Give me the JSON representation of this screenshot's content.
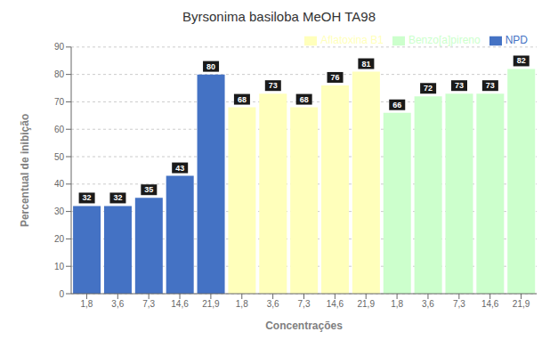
{
  "chart_data": {
    "type": "bar",
    "title": "Byrsonima basiloba  MeOH TA98",
    "xlabel": "Concentrações",
    "ylabel": "Percentual de inibição",
    "categories": [
      "1,8",
      "3,6",
      "7,3",
      "14,6",
      "21,9",
      "1,8",
      "3,6",
      "7,3",
      "14,6",
      "21,9",
      "1,8",
      "3,6",
      "7,3",
      "14,6",
      "21,9"
    ],
    "series": [
      {
        "name": "NPD",
        "color": "#4472C4",
        "values": [
          32,
          32,
          35,
          43,
          80,
          null,
          null,
          null,
          null,
          null,
          null,
          null,
          null,
          null,
          null
        ]
      },
      {
        "name": "Aflatoxina B1",
        "color": "#FFFFBB",
        "values": [
          null,
          null,
          null,
          null,
          null,
          68,
          73,
          68,
          76,
          81,
          null,
          null,
          null,
          null,
          null
        ]
      },
      {
        "name": "Benzo[a]pireno",
        "color": "#CCFFCC",
        "values": [
          null,
          null,
          null,
          null,
          null,
          null,
          null,
          null,
          null,
          null,
          66,
          72,
          73,
          73,
          82
        ]
      }
    ],
    "ylim": [
      0,
      90
    ],
    "yticks": [
      0,
      10,
      20,
      30,
      40,
      50,
      60,
      70,
      80,
      90
    ],
    "grid": true,
    "legend": "upper right",
    "data_labels": true
  }
}
